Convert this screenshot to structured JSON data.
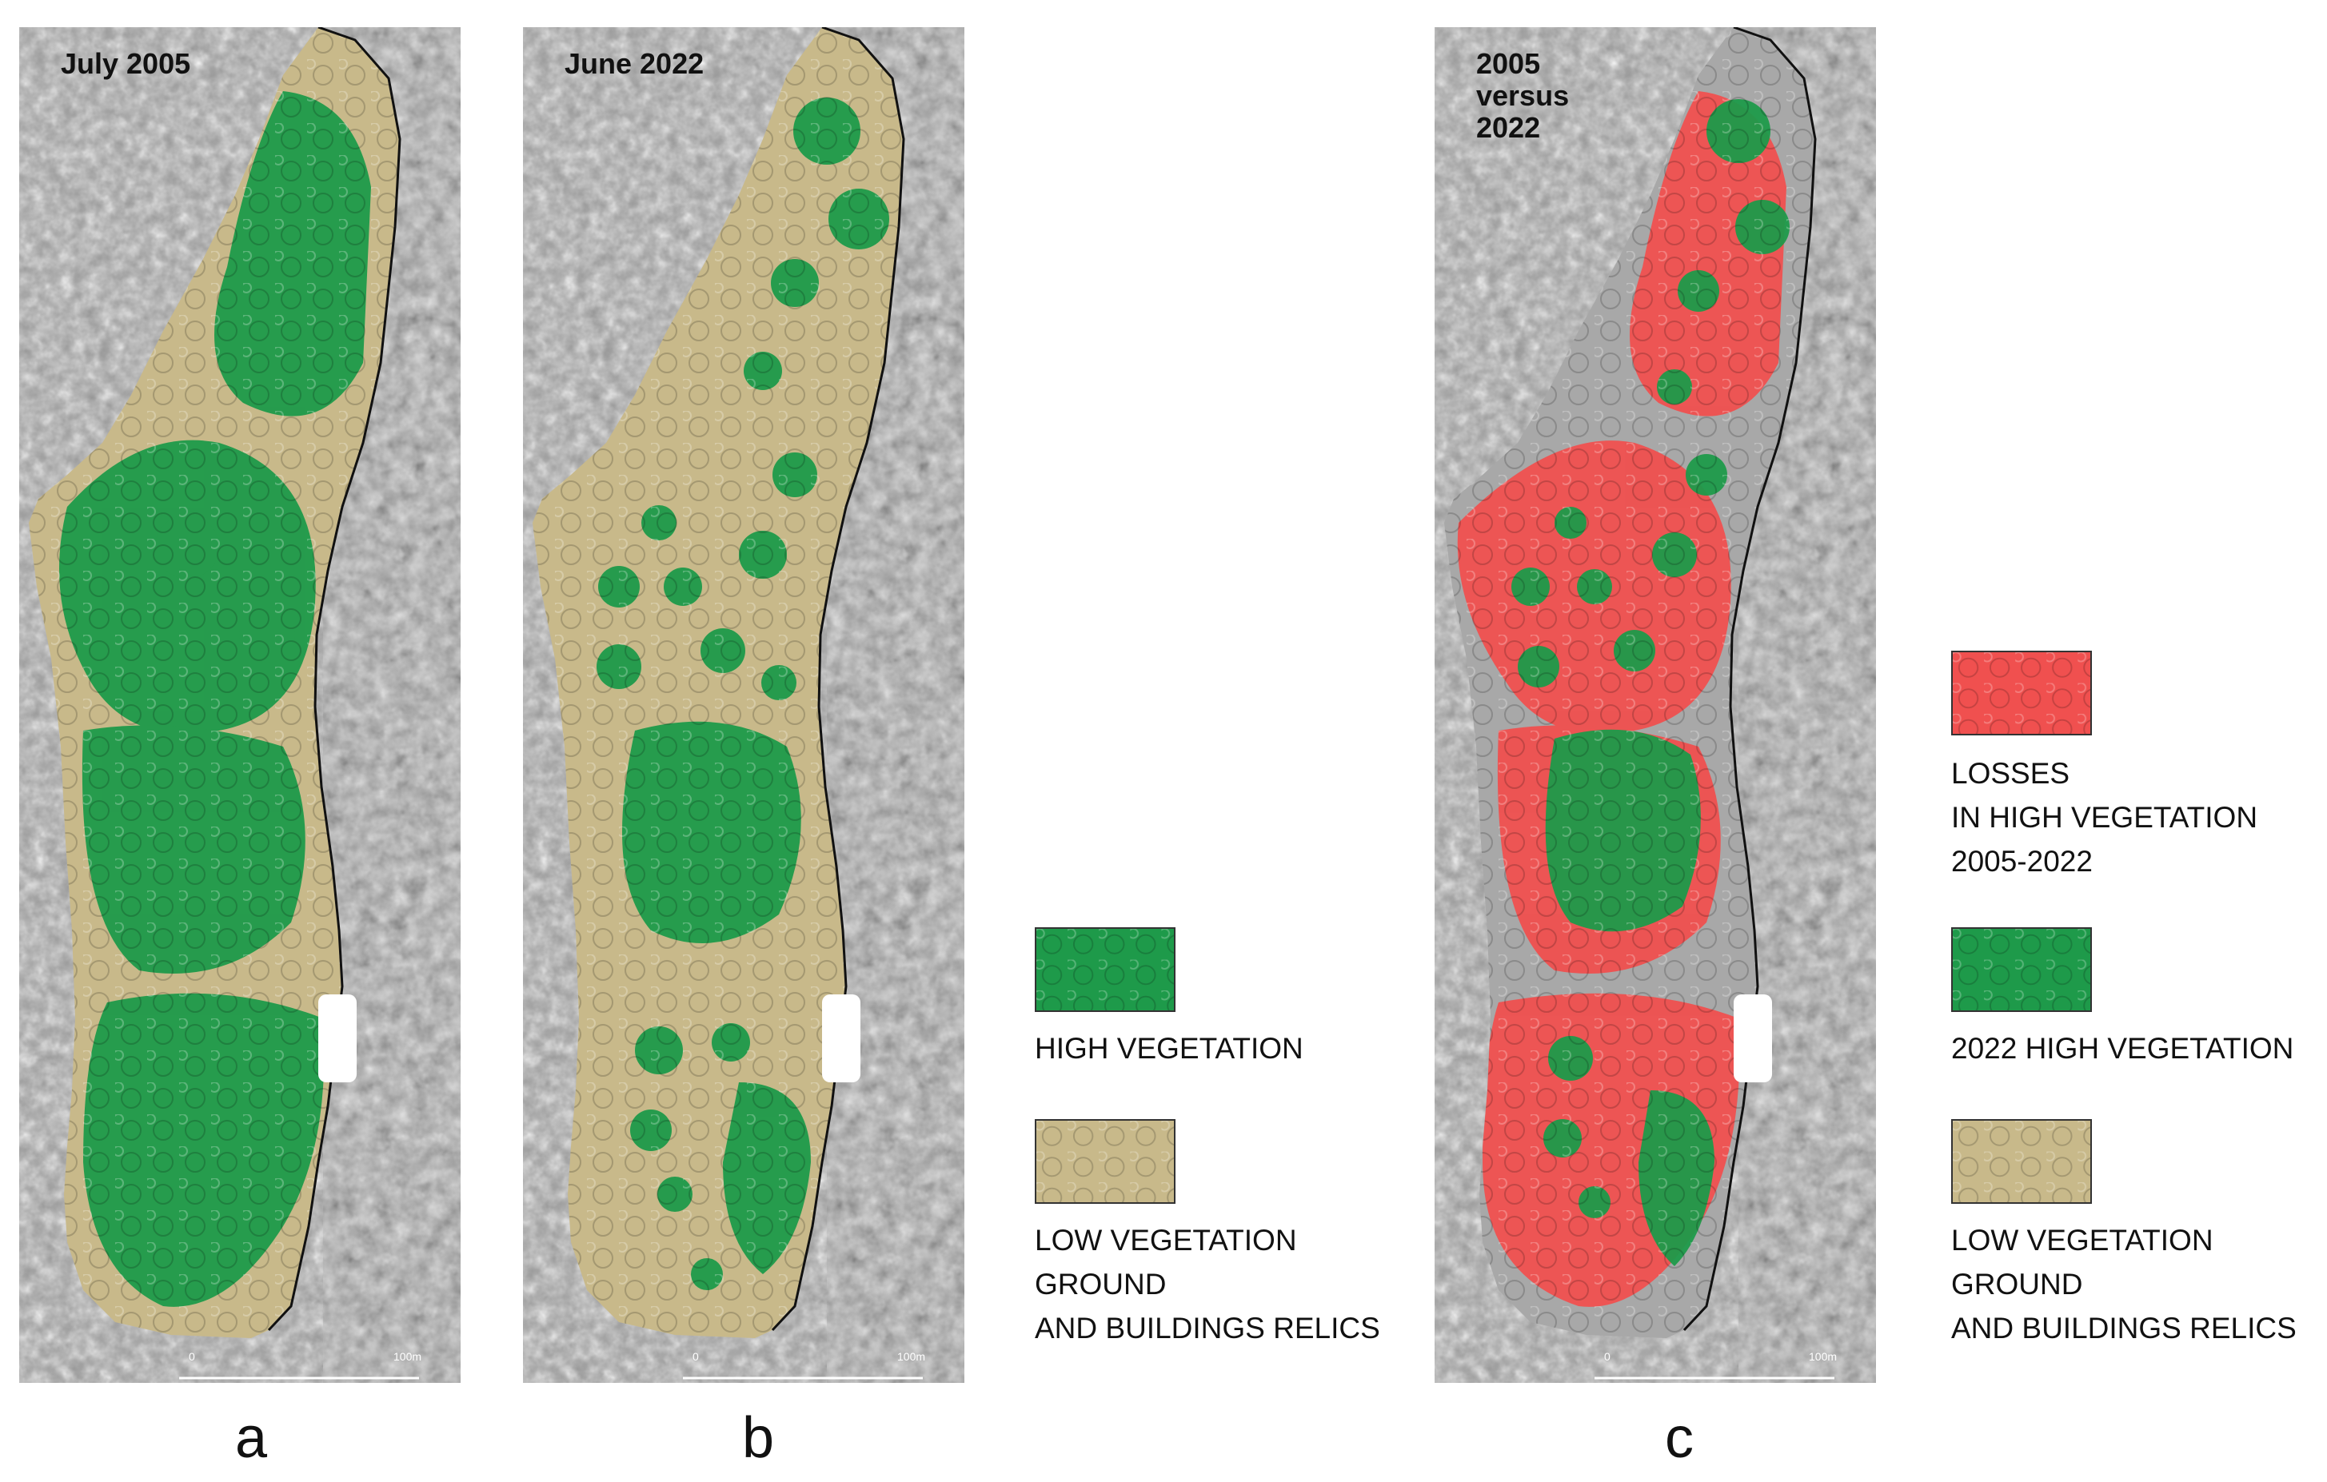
{
  "panels": [
    {
      "id": "a",
      "title": "July 2005",
      "letter": "a",
      "scale": {
        "start": "0",
        "end": "100m"
      }
    },
    {
      "id": "b",
      "title": "June 2022",
      "letter": "b",
      "scale": {
        "start": "0",
        "end": "100m"
      }
    },
    {
      "id": "c",
      "title": "2005\nversus\n2022",
      "letter": "c",
      "scale": {
        "start": "0",
        "end": "100m"
      }
    }
  ],
  "legend_ab": {
    "high": "HIGH VEGETATION",
    "low": "LOW VEGETATION\nGROUND\nAND BUILDINGS RELICS"
  },
  "legend_c": {
    "losses": "LOSSES\nIN HIGH VEGETATION\n2005-2022",
    "high": "2022 HIGH VEGETATION",
    "low": "LOW VEGETATION\nGROUND\nAND BUILDINGS RELICS"
  },
  "colors": {
    "high_vegetation": "#1e9a4a",
    "low_vegetation": "#c8b98a",
    "losses": "#f0504f",
    "hillshade": "#9a9a9a"
  }
}
